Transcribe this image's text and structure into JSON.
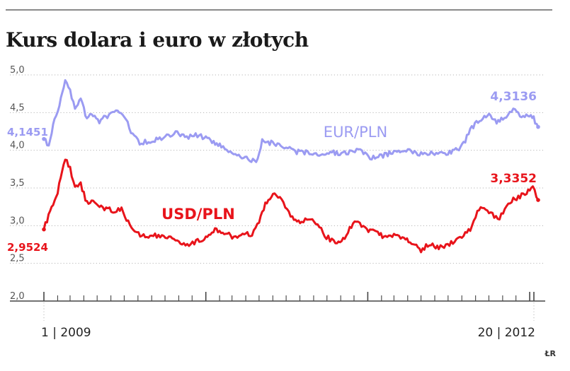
{
  "title": "Kurs dolara i euro w złotych",
  "credit": "ŁR",
  "colors": {
    "eur": "#9b9bf2",
    "usd": "#e8141b",
    "grid": "#b5b5b5",
    "axis": "#444444"
  },
  "chart_data": {
    "type": "line",
    "ylim": [
      2.0,
      5.0
    ],
    "y_ticks": [
      "5,0",
      "4,5",
      "4,0",
      "3,5",
      "3,0",
      "2,5",
      "2,0"
    ],
    "x_range": [
      "2009-01-01",
      "2012-01-20"
    ],
    "x_labels": [
      {
        "label": "1 | 2009",
        "date": "2009-01-01"
      },
      {
        "label": "20 | 2012",
        "date": "2012-01-20"
      }
    ],
    "grid": "horizontal dashed",
    "series": [
      {
        "name": "EUR/PLN",
        "color": "#9b9bf2",
        "start_label": "4,1451",
        "end_label": "4,3136",
        "points": [
          [
            "2009-01-01",
            4.15
          ],
          [
            "2009-01-12",
            4.05
          ],
          [
            "2009-01-25",
            4.42
          ],
          [
            "2009-02-05",
            4.6
          ],
          [
            "2009-02-18",
            4.92
          ],
          [
            "2009-03-01",
            4.78
          ],
          [
            "2009-03-12",
            4.55
          ],
          [
            "2009-03-25",
            4.67
          ],
          [
            "2009-04-08",
            4.42
          ],
          [
            "2009-04-22",
            4.48
          ],
          [
            "2009-05-06",
            4.38
          ],
          [
            "2009-05-20",
            4.45
          ],
          [
            "2009-06-05",
            4.48
          ],
          [
            "2009-06-20",
            4.52
          ],
          [
            "2009-07-05",
            4.4
          ],
          [
            "2009-07-20",
            4.2
          ],
          [
            "2009-08-05",
            4.1
          ],
          [
            "2009-08-25",
            4.12
          ],
          [
            "2009-09-15",
            4.15
          ],
          [
            "2009-10-05",
            4.18
          ],
          [
            "2009-10-25",
            4.24
          ],
          [
            "2009-11-15",
            4.17
          ],
          [
            "2009-12-05",
            4.2
          ],
          [
            "2009-12-25",
            4.18
          ],
          [
            "2010-01-15",
            4.12
          ],
          [
            "2010-02-05",
            4.06
          ],
          [
            "2010-02-25",
            3.98
          ],
          [
            "2010-03-20",
            3.92
          ],
          [
            "2010-04-10",
            3.88
          ],
          [
            "2010-04-28",
            3.86
          ],
          [
            "2010-05-08",
            4.12
          ],
          [
            "2010-05-25",
            4.1
          ],
          [
            "2010-06-15",
            4.08
          ],
          [
            "2010-07-05",
            4.02
          ],
          [
            "2010-07-25",
            3.98
          ],
          [
            "2010-08-15",
            3.97
          ],
          [
            "2010-09-10",
            3.95
          ],
          [
            "2010-10-05",
            3.98
          ],
          [
            "2010-10-30",
            3.96
          ],
          [
            "2010-11-25",
            3.98
          ],
          [
            "2010-12-15",
            4.0
          ],
          [
            "2011-01-10",
            3.9
          ],
          [
            "2011-02-01",
            3.92
          ],
          [
            "2011-03-01",
            3.98
          ],
          [
            "2011-03-25",
            4.02
          ],
          [
            "2011-04-20",
            3.96
          ],
          [
            "2011-05-20",
            3.97
          ],
          [
            "2011-06-20",
            3.96
          ],
          [
            "2011-07-15",
            3.98
          ],
          [
            "2011-08-05",
            4.08
          ],
          [
            "2011-08-20",
            4.28
          ],
          [
            "2011-09-10",
            4.4
          ],
          [
            "2011-09-28",
            4.48
          ],
          [
            "2011-10-15",
            4.38
          ],
          [
            "2011-11-05",
            4.42
          ],
          [
            "2011-11-25",
            4.54
          ],
          [
            "2011-12-10",
            4.47
          ],
          [
            "2011-12-28",
            4.46
          ],
          [
            "2012-01-10",
            4.42
          ],
          [
            "2012-01-20",
            4.31
          ]
        ]
      },
      {
        "name": "USD/PLN",
        "color": "#e8141b",
        "start_label": "2,9524",
        "end_label": "3,3352",
        "points": [
          [
            "2009-01-01",
            2.95
          ],
          [
            "2009-01-15",
            3.2
          ],
          [
            "2009-02-01",
            3.45
          ],
          [
            "2009-02-18",
            3.9
          ],
          [
            "2009-03-01",
            3.75
          ],
          [
            "2009-03-12",
            3.5
          ],
          [
            "2009-03-25",
            3.55
          ],
          [
            "2009-04-08",
            3.3
          ],
          [
            "2009-04-22",
            3.35
          ],
          [
            "2009-05-10",
            3.25
          ],
          [
            "2009-05-25",
            3.22
          ],
          [
            "2009-06-10",
            3.18
          ],
          [
            "2009-06-25",
            3.22
          ],
          [
            "2009-07-10",
            3.05
          ],
          [
            "2009-07-25",
            2.95
          ],
          [
            "2009-08-10",
            2.85
          ],
          [
            "2009-09-01",
            2.88
          ],
          [
            "2009-09-20",
            2.85
          ],
          [
            "2009-10-10",
            2.86
          ],
          [
            "2009-11-01",
            2.8
          ],
          [
            "2009-11-20",
            2.75
          ],
          [
            "2009-12-10",
            2.78
          ],
          [
            "2010-01-01",
            2.85
          ],
          [
            "2010-01-25",
            2.95
          ],
          [
            "2010-02-15",
            2.9
          ],
          [
            "2010-03-05",
            2.85
          ],
          [
            "2010-03-25",
            2.9
          ],
          [
            "2010-04-15",
            2.88
          ],
          [
            "2010-05-01",
            3.05
          ],
          [
            "2010-05-15",
            3.3
          ],
          [
            "2010-06-05",
            3.45
          ],
          [
            "2010-06-25",
            3.3
          ],
          [
            "2010-07-15",
            3.1
          ],
          [
            "2010-08-05",
            3.05
          ],
          [
            "2010-08-25",
            3.1
          ],
          [
            "2010-09-10",
            3.0
          ],
          [
            "2010-09-30",
            2.85
          ],
          [
            "2010-10-20",
            2.78
          ],
          [
            "2010-11-10",
            2.82
          ],
          [
            "2010-11-25",
            3.0
          ],
          [
            "2010-12-10",
            3.05
          ],
          [
            "2010-12-30",
            2.95
          ],
          [
            "2011-01-20",
            2.9
          ],
          [
            "2011-02-10",
            2.85
          ],
          [
            "2011-03-01",
            2.88
          ],
          [
            "2011-03-20",
            2.82
          ],
          [
            "2011-04-10",
            2.78
          ],
          [
            "2011-05-01",
            2.68
          ],
          [
            "2011-05-20",
            2.75
          ],
          [
            "2011-06-10",
            2.72
          ],
          [
            "2011-06-30",
            2.74
          ],
          [
            "2011-07-20",
            2.8
          ],
          [
            "2011-08-05",
            2.88
          ],
          [
            "2011-08-20",
            2.95
          ],
          [
            "2011-09-05",
            3.2
          ],
          [
            "2011-09-20",
            3.25
          ],
          [
            "2011-10-05",
            3.15
          ],
          [
            "2011-10-25",
            3.1
          ],
          [
            "2011-11-10",
            3.25
          ],
          [
            "2011-11-25",
            3.35
          ],
          [
            "2011-12-10",
            3.38
          ],
          [
            "2011-12-25",
            3.45
          ],
          [
            "2012-01-08",
            3.5
          ],
          [
            "2012-01-20",
            3.34
          ]
        ]
      }
    ]
  }
}
